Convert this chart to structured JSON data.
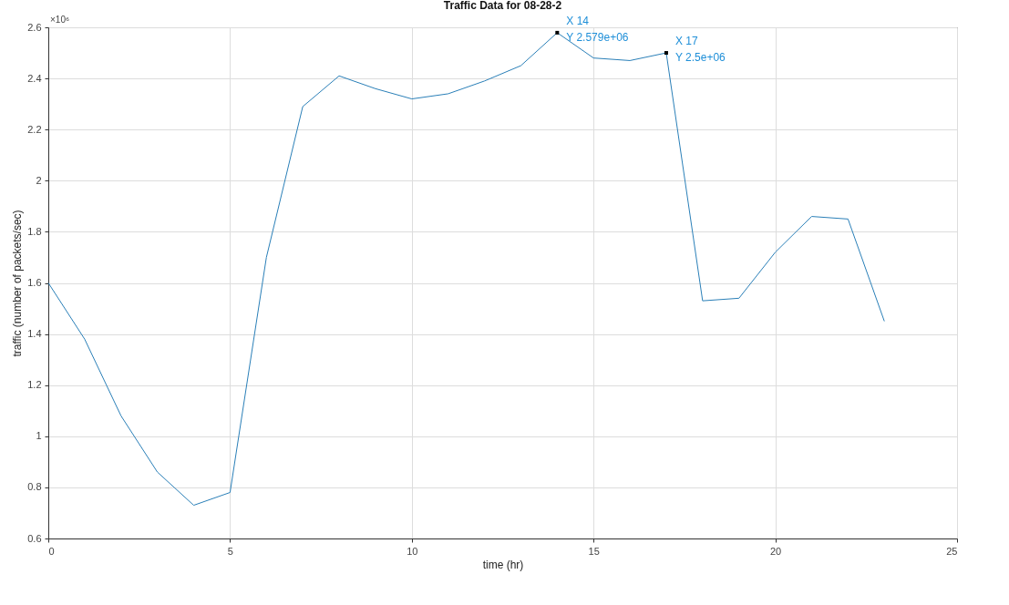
{
  "chart_data": {
    "type": "line",
    "title": "Traffic Data for 08-28-2",
    "xlabel": "time (hr)",
    "ylabel": "traffic (number of packets/sec)",
    "x": [
      0,
      1,
      2,
      3,
      4,
      5,
      6,
      7,
      8,
      9,
      10,
      11,
      12,
      13,
      14,
      15,
      16,
      17,
      18,
      19,
      20,
      21,
      22,
      23
    ],
    "series": [
      {
        "color": "#2a7fb8",
        "values": [
          1.6,
          1.38,
          1.08,
          0.86,
          0.73,
          0.78,
          1.7,
          2.29,
          2.41,
          2.36,
          2.32,
          2.34,
          2.39,
          2.45,
          2.579,
          2.48,
          2.47,
          2.5,
          1.53,
          1.54,
          1.72,
          1.86,
          1.85,
          1.45
        ]
      }
    ],
    "xlim": [
      0,
      25
    ],
    "xticks": [
      0,
      5,
      10,
      15,
      20,
      25
    ],
    "ylim": [
      0.6,
      2.6
    ],
    "yticks": [
      0.6,
      0.8,
      1,
      1.2,
      1.4,
      1.6,
      1.8,
      2,
      2.2,
      2.4,
      2.6
    ],
    "grid": true,
    "annotations": [
      "×10⁶",
      {
        "text": "X 14\nY 2.579e+06",
        "x": 14,
        "y": 2.579
      },
      {
        "text": "X 17\nY 2.5e+06",
        "x": 17,
        "y": 2.5
      }
    ]
  }
}
